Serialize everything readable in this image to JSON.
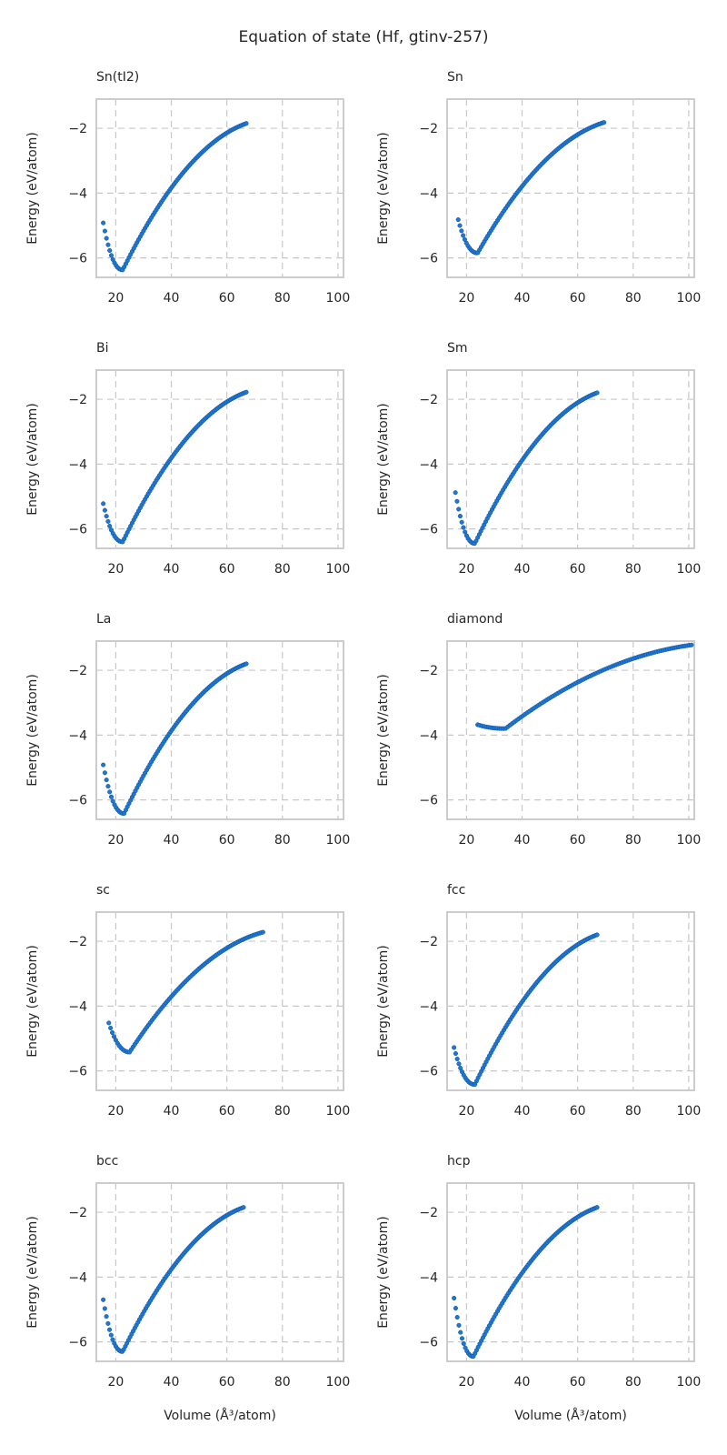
{
  "figure": {
    "title": "Equation of state (Hf, gtinv-257)",
    "point_color": "#1f77d4",
    "point_edge_color": "#0d4f9c",
    "grid_color": "#c8c8c8",
    "frame_color": "#cccccc"
  },
  "chart_data": [
    {
      "type": "scatter",
      "title": "Sn(tI2)",
      "xlabel": "",
      "ylabel": "Energy (eV/atom)",
      "xlim": [
        13,
        102
      ],
      "ylim": [
        -6.6,
        -1.1
      ],
      "xticks": [
        20,
        40,
        60,
        80,
        100
      ],
      "yticks": [
        -6,
        -4,
        -2
      ],
      "grid": true,
      "curve": {
        "v_start": 15.5,
        "v_end": 67.0,
        "v0": 22.5,
        "e0": -6.37,
        "e_start": -4.92,
        "e_end": -1.85,
        "n": 90
      }
    },
    {
      "type": "scatter",
      "title": "Sn",
      "xlabel": "",
      "ylabel": "Energy (eV/atom)",
      "xlim": [
        13,
        102
      ],
      "ylim": [
        -6.6,
        -1.1
      ],
      "xticks": [
        20,
        40,
        60,
        80,
        100
      ],
      "yticks": [
        -6,
        -4,
        -2
      ],
      "grid": true,
      "curve": {
        "v_start": 17.0,
        "v_end": 69.5,
        "v0": 24.0,
        "e0": -5.85,
        "e_start": -4.82,
        "e_end": -1.82,
        "n": 90
      }
    },
    {
      "type": "scatter",
      "title": "Bi",
      "xlabel": "",
      "ylabel": "Energy (eV/atom)",
      "xlim": [
        13,
        102
      ],
      "ylim": [
        -6.6,
        -1.1
      ],
      "xticks": [
        20,
        40,
        60,
        80,
        100
      ],
      "yticks": [
        -6,
        -4,
        -2
      ],
      "grid": true,
      "curve": {
        "v_start": 15.5,
        "v_end": 67.0,
        "v0": 22.5,
        "e0": -6.4,
        "e_start": -5.22,
        "e_end": -1.78,
        "n": 90
      }
    },
    {
      "type": "scatter",
      "title": "Sm",
      "xlabel": "",
      "ylabel": "Energy (eV/atom)",
      "xlim": [
        13,
        102
      ],
      "ylim": [
        -6.6,
        -1.1
      ],
      "xticks": [
        20,
        40,
        60,
        80,
        100
      ],
      "yticks": [
        -6,
        -4,
        -2
      ],
      "grid": true,
      "curve": {
        "v_start": 16.0,
        "v_end": 67.0,
        "v0": 23.0,
        "e0": -6.45,
        "e_start": -4.88,
        "e_end": -1.8,
        "n": 90
      }
    },
    {
      "type": "scatter",
      "title": "La",
      "xlabel": "",
      "ylabel": "Energy (eV/atom)",
      "xlim": [
        13,
        102
      ],
      "ylim": [
        -6.6,
        -1.1
      ],
      "xticks": [
        20,
        40,
        60,
        80,
        100
      ],
      "yticks": [
        -6,
        -4,
        -2
      ],
      "grid": true,
      "curve": {
        "v_start": 15.5,
        "v_end": 67.0,
        "v0": 23.0,
        "e0": -6.42,
        "e_start": -4.92,
        "e_end": -1.8,
        "n": 90
      }
    },
    {
      "type": "scatter",
      "title": "diamond",
      "xlabel": "",
      "ylabel": "Energy (eV/atom)",
      "xlim": [
        13,
        102
      ],
      "ylim": [
        -6.6,
        -1.1
      ],
      "xticks": [
        20,
        40,
        60,
        80,
        100
      ],
      "yticks": [
        -6,
        -4,
        -2
      ],
      "grid": true,
      "curve": {
        "v_start": 24.0,
        "v_end": 101.0,
        "v0": 34.0,
        "e0": -3.8,
        "e_start": -3.68,
        "e_end": -1.22,
        "n": 100
      }
    },
    {
      "type": "scatter",
      "title": "sc",
      "xlabel": "",
      "ylabel": "Energy (eV/atom)",
      "xlim": [
        13,
        102
      ],
      "ylim": [
        -6.6,
        -1.1
      ],
      "xticks": [
        20,
        40,
        60,
        80,
        100
      ],
      "yticks": [
        -6,
        -4,
        -2
      ],
      "grid": true,
      "curve": {
        "v_start": 17.5,
        "v_end": 73.0,
        "v0": 25.0,
        "e0": -5.42,
        "e_start": -4.52,
        "e_end": -1.72,
        "n": 90
      }
    },
    {
      "type": "scatter",
      "title": "fcc",
      "xlabel": "",
      "ylabel": "Energy (eV/atom)",
      "xlim": [
        13,
        102
      ],
      "ylim": [
        -6.6,
        -1.1
      ],
      "xticks": [
        20,
        40,
        60,
        80,
        100
      ],
      "yticks": [
        -6,
        -4,
        -2
      ],
      "grid": true,
      "curve": {
        "v_start": 15.5,
        "v_end": 67.0,
        "v0": 23.0,
        "e0": -6.42,
        "e_start": -5.28,
        "e_end": -1.8,
        "n": 90
      }
    },
    {
      "type": "scatter",
      "title": "bcc",
      "xlabel": "Volume (Å³/atom)",
      "ylabel": "Energy (eV/atom)",
      "xlim": [
        13,
        102
      ],
      "ylim": [
        -6.6,
        -1.1
      ],
      "xticks": [
        20,
        40,
        60,
        80,
        100
      ],
      "yticks": [
        -6,
        -4,
        -2
      ],
      "grid": true,
      "curve": {
        "v_start": 15.5,
        "v_end": 66.0,
        "v0": 22.5,
        "e0": -6.3,
        "e_start": -4.7,
        "e_end": -1.85,
        "n": 90
      }
    },
    {
      "type": "scatter",
      "title": "hcp",
      "xlabel": "Volume (Å³/atom)",
      "ylabel": "Energy (eV/atom)",
      "xlim": [
        13,
        102
      ],
      "ylim": [
        -6.6,
        -1.1
      ],
      "xticks": [
        20,
        40,
        60,
        80,
        100
      ],
      "yticks": [
        -6,
        -4,
        -2
      ],
      "grid": true,
      "curve": {
        "v_start": 15.5,
        "v_end": 67.0,
        "v0": 22.5,
        "e0": -6.45,
        "e_start": -4.65,
        "e_end": -1.85,
        "n": 90
      }
    }
  ]
}
